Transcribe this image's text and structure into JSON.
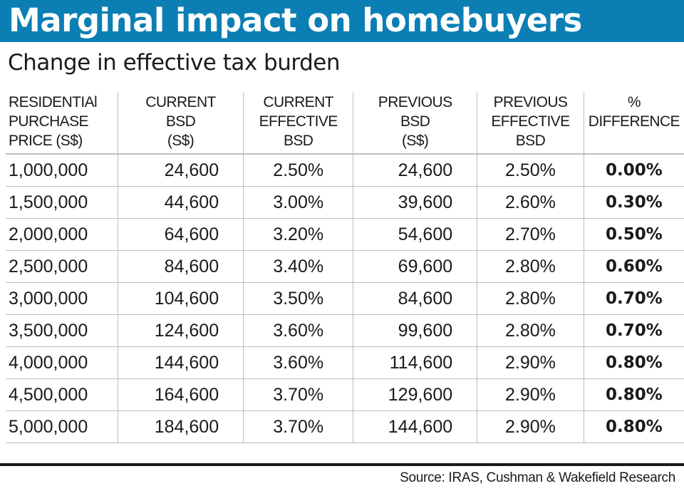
{
  "title": "Marginal impact on homebuyers",
  "subtitle": "Change in effective tax burden",
  "colors": {
    "banner": "#0b7fb4",
    "banner_text": "#ffffff",
    "rule": "#1a1a1a",
    "gridline": "#bdbdbd"
  },
  "chart_data": {
    "type": "table",
    "title": "Marginal impact on homebuyers",
    "subtitle": "Change in effective tax burden",
    "columns": [
      [
        "RESIDENTIAl",
        "PURCHASE",
        "PRICE (S$)"
      ],
      [
        "CURRENT",
        "BSD",
        "(S$)"
      ],
      [
        "CURRENT",
        "EFFECTIVE",
        "BSD"
      ],
      [
        "PREVIOUS",
        "BSD",
        "(S$)"
      ],
      [
        "PREVIOUS",
        "EFFECTIVE",
        "BSD"
      ],
      [
        "%",
        "DIFFERENCE",
        ""
      ]
    ],
    "rows": [
      [
        "1,000,000",
        "24,600",
        "2.50%",
        "24,600",
        "2.50%",
        "0.00%"
      ],
      [
        "1,500,000",
        "44,600",
        "3.00%",
        "39,600",
        "2.60%",
        "0.30%"
      ],
      [
        "2,000,000",
        "64,600",
        "3.20%",
        "54,600",
        "2.70%",
        "0.50%"
      ],
      [
        "2,500,000",
        "84,600",
        "3.40%",
        "69,600",
        "2.80%",
        "0.60%"
      ],
      [
        "3,000,000",
        "104,600",
        "3.50%",
        "84,600",
        "2.80%",
        "0.70%"
      ],
      [
        "3,500,000",
        "124,600",
        "3.60%",
        "99,600",
        "2.80%",
        "0.70%"
      ],
      [
        "4,000,000",
        "144,600",
        "3.60%",
        "114,600",
        "2.90%",
        "0.80%"
      ],
      [
        "4,500,000",
        "164,600",
        "3.70%",
        "129,600",
        "2.90%",
        "0.80%"
      ],
      [
        "5,000,000",
        "184,600",
        "3.70%",
        "144,600",
        "2.90%",
        "0.80%"
      ]
    ],
    "source": "Source: IRAS, Cushman & Wakefield Research"
  }
}
